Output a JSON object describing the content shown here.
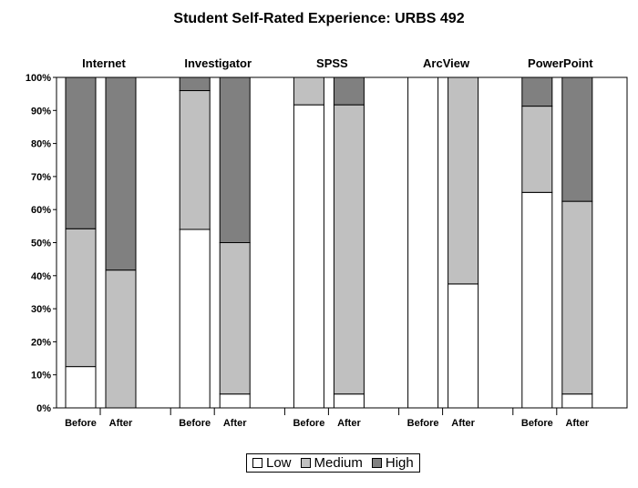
{
  "chart_data": {
    "type": "bar",
    "stacked": true,
    "title": "Student Self-Rated Experience: URBS 492",
    "ylim": [
      0,
      100
    ],
    "y_ticks": [
      "0%",
      "10%",
      "20%",
      "30%",
      "40%",
      "50%",
      "60%",
      "70%",
      "80%",
      "90%",
      "100%"
    ],
    "groups": [
      "Internet",
      "Investigator",
      "SPSS",
      "ArcView",
      "PowerPoint"
    ],
    "categories": [
      "Before",
      "After"
    ],
    "series": [
      {
        "name": "Low",
        "color": "#ffffff",
        "values": [
          [
            12.5,
            0
          ],
          [
            54,
            4.2
          ],
          [
            91.7,
            4.2
          ],
          [
            100,
            37.5
          ],
          [
            65.2,
            4.2
          ]
        ]
      },
      {
        "name": "Medium",
        "color": "#c0c0c0",
        "values": [
          [
            41.7,
            41.7
          ],
          [
            42,
            45.8
          ],
          [
            8.3,
            87.5
          ],
          [
            0,
            62.5
          ],
          [
            26.1,
            58.3
          ]
        ]
      },
      {
        "name": "High",
        "color": "#808080",
        "values": [
          [
            45.8,
            58.3
          ],
          [
            4,
            50
          ],
          [
            0,
            8.3
          ],
          [
            0,
            0
          ],
          [
            8.7,
            37.5
          ]
        ]
      }
    ],
    "legend_position": "bottom"
  }
}
